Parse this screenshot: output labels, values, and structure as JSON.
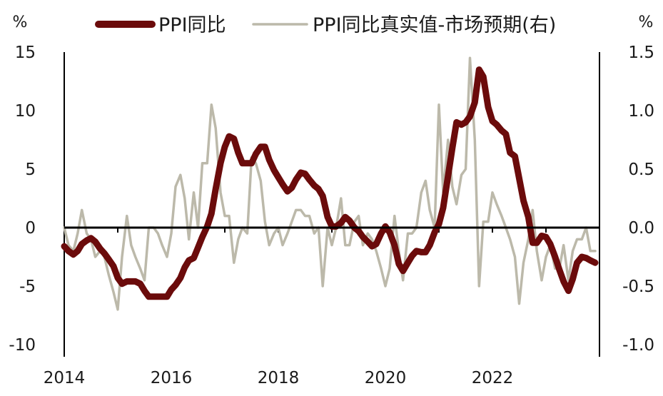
{
  "chart_data": {
    "type": "line",
    "units": {
      "left": "%",
      "right": "%"
    },
    "xaxis": {
      "ticks": [
        "2014",
        "2016",
        "2018",
        "2020",
        "2022"
      ],
      "range": [
        2014.0,
        2024.0
      ]
    },
    "yaxis_left": {
      "ticks": [
        "15",
        "10",
        "5",
        "0",
        "-5",
        "-10"
      ],
      "ylim": [
        -10,
        15
      ]
    },
    "yaxis_right": {
      "ticks": [
        "1.5",
        "1.0",
        "0.5",
        "0.0",
        "-0.5",
        "-1.0"
      ],
      "ylim": [
        -1.0,
        1.5
      ]
    },
    "legend_position": "top",
    "grid": false,
    "zero_line": true,
    "series": [
      {
        "name": "PPI同比",
        "axis": "left",
        "color": "#6b0b0b",
        "x": [
          2014.0,
          2014.08,
          2014.17,
          2014.25,
          2014.33,
          2014.42,
          2014.5,
          2014.58,
          2014.67,
          2014.75,
          2014.83,
          2014.92,
          2015.0,
          2015.08,
          2015.17,
          2015.25,
          2015.33,
          2015.42,
          2015.5,
          2015.58,
          2015.67,
          2015.75,
          2015.83,
          2015.92,
          2016.0,
          2016.08,
          2016.17,
          2016.25,
          2016.33,
          2016.42,
          2016.5,
          2016.58,
          2016.67,
          2016.75,
          2016.83,
          2016.92,
          2017.0,
          2017.08,
          2017.17,
          2017.25,
          2017.33,
          2017.42,
          2017.5,
          2017.58,
          2017.67,
          2017.75,
          2017.83,
          2017.92,
          2018.0,
          2018.08,
          2018.17,
          2018.25,
          2018.33,
          2018.42,
          2018.5,
          2018.58,
          2018.67,
          2018.75,
          2018.83,
          2018.92,
          2019.0,
          2019.08,
          2019.17,
          2019.25,
          2019.33,
          2019.42,
          2019.5,
          2019.58,
          2019.67,
          2019.75,
          2019.83,
          2019.92,
          2020.0,
          2020.08,
          2020.17,
          2020.25,
          2020.33,
          2020.42,
          2020.5,
          2020.58,
          2020.67,
          2020.75,
          2020.83,
          2020.92,
          2021.0,
          2021.08,
          2021.17,
          2021.25,
          2021.33,
          2021.42,
          2021.5,
          2021.58,
          2021.67,
          2021.75,
          2021.83,
          2021.92,
          2022.0,
          2022.08,
          2022.17,
          2022.25,
          2022.33,
          2022.42,
          2022.5,
          2022.58,
          2022.67,
          2022.75,
          2022.83,
          2022.92,
          2023.0,
          2023.08,
          2023.17,
          2023.25,
          2023.33,
          2023.42,
          2023.5,
          2023.58,
          2023.67,
          2023.75,
          2023.83,
          2023.92
        ],
        "y": [
          -1.6,
          -2.0,
          -2.3,
          -2.0,
          -1.4,
          -1.1,
          -0.9,
          -1.2,
          -1.8,
          -2.2,
          -2.7,
          -3.3,
          -4.3,
          -4.8,
          -4.6,
          -4.6,
          -4.6,
          -4.8,
          -5.4,
          -5.9,
          -5.9,
          -5.9,
          -5.9,
          -5.9,
          -5.3,
          -4.9,
          -4.3,
          -3.4,
          -2.8,
          -2.6,
          -1.7,
          -0.8,
          0.1,
          1.2,
          3.3,
          5.5,
          6.9,
          7.8,
          7.6,
          6.4,
          5.5,
          5.5,
          5.5,
          6.3,
          6.9,
          6.9,
          5.8,
          4.9,
          4.3,
          3.7,
          3.1,
          3.4,
          4.1,
          4.7,
          4.6,
          4.1,
          3.6,
          3.3,
          2.7,
          0.9,
          0.1,
          0.1,
          0.4,
          0.9,
          0.6,
          0.0,
          -0.3,
          -0.8,
          -1.2,
          -1.6,
          -1.4,
          -0.5,
          0.1,
          -0.4,
          -1.5,
          -3.1,
          -3.7,
          -3.0,
          -2.4,
          -2.0,
          -2.1,
          -2.1,
          -1.5,
          -0.4,
          0.3,
          1.7,
          4.4,
          6.8,
          9.0,
          8.8,
          9.0,
          9.5,
          10.7,
          13.5,
          12.9,
          10.3,
          9.1,
          8.8,
          8.3,
          8.0,
          6.4,
          6.1,
          4.2,
          2.3,
          0.9,
          -1.3,
          -1.3,
          -0.7,
          -0.8,
          -1.4,
          -2.5,
          -3.6,
          -4.6,
          -5.4,
          -4.4,
          -3.0,
          -2.5,
          -2.6,
          -2.8,
          -3.0
        ]
      },
      {
        "name": "PPI同比真实值-市场预期(右)",
        "axis": "right",
        "color": "#bcb9aa",
        "x": [
          2014.0,
          2014.08,
          2014.17,
          2014.25,
          2014.33,
          2014.42,
          2014.5,
          2014.58,
          2014.67,
          2014.75,
          2014.83,
          2014.92,
          2015.0,
          2015.08,
          2015.17,
          2015.25,
          2015.33,
          2015.42,
          2015.5,
          2015.58,
          2015.67,
          2015.75,
          2015.83,
          2015.92,
          2016.0,
          2016.08,
          2016.17,
          2016.25,
          2016.33,
          2016.42,
          2016.5,
          2016.58,
          2016.67,
          2016.75,
          2016.83,
          2016.92,
          2017.0,
          2017.08,
          2017.17,
          2017.25,
          2017.33,
          2017.42,
          2017.5,
          2017.58,
          2017.67,
          2017.75,
          2017.83,
          2017.92,
          2018.0,
          2018.08,
          2018.17,
          2018.25,
          2018.33,
          2018.42,
          2018.5,
          2018.58,
          2018.67,
          2018.75,
          2018.83,
          2018.92,
          2019.0,
          2019.08,
          2019.17,
          2019.25,
          2019.33,
          2019.42,
          2019.5,
          2019.58,
          2019.67,
          2019.75,
          2019.83,
          2019.92,
          2020.0,
          2020.08,
          2020.17,
          2020.25,
          2020.33,
          2020.42,
          2020.5,
          2020.58,
          2020.67,
          2020.75,
          2020.83,
          2020.92,
          2021.0,
          2021.08,
          2021.17,
          2021.25,
          2021.33,
          2021.42,
          2021.5,
          2021.58,
          2021.67,
          2021.75,
          2021.83,
          2021.92,
          2022.0,
          2022.08,
          2022.17,
          2022.25,
          2022.33,
          2022.42,
          2022.5,
          2022.58,
          2022.67,
          2022.75,
          2022.83,
          2022.92,
          2023.0,
          2023.08,
          2023.17,
          2023.25,
          2023.33,
          2023.42,
          2023.5,
          2023.58,
          2023.67,
          2023.75,
          2023.83,
          2023.92
        ],
        "y": [
          0.0,
          -0.15,
          -0.2,
          -0.05,
          0.15,
          -0.05,
          -0.1,
          -0.25,
          -0.2,
          -0.25,
          -0.4,
          -0.55,
          -0.7,
          -0.25,
          0.1,
          -0.15,
          -0.25,
          -0.35,
          -0.45,
          0.0,
          0.0,
          -0.05,
          -0.15,
          -0.25,
          -0.05,
          0.35,
          0.45,
          0.25,
          -0.1,
          0.3,
          0.0,
          0.55,
          0.55,
          1.05,
          0.85,
          0.3,
          0.1,
          0.1,
          -0.3,
          -0.1,
          0.0,
          -0.05,
          0.6,
          0.55,
          0.4,
          0.05,
          -0.15,
          -0.05,
          0.0,
          -0.15,
          -0.05,
          0.05,
          0.15,
          0.15,
          0.1,
          0.1,
          -0.05,
          0.0,
          -0.5,
          0.0,
          -0.15,
          0.0,
          0.25,
          -0.15,
          -0.15,
          0.05,
          0.1,
          -0.15,
          -0.05,
          -0.1,
          -0.2,
          -0.35,
          -0.5,
          -0.35,
          0.1,
          -0.2,
          -0.45,
          -0.05,
          -0.05,
          0.0,
          0.3,
          0.4,
          0.15,
          0.0,
          1.05,
          0.3,
          0.75,
          0.35,
          0.2,
          0.45,
          0.5,
          1.45,
          0.75,
          -0.5,
          0.05,
          0.05,
          0.3,
          0.2,
          0.1,
          0.0,
          -0.1,
          -0.25,
          -0.65,
          -0.3,
          -0.1,
          0.15,
          -0.2,
          -0.45,
          -0.25,
          -0.15,
          -0.35,
          -0.35,
          -0.15,
          -0.45,
          -0.2,
          -0.1,
          -0.1,
          0.0,
          -0.2,
          -0.2
        ]
      }
    ]
  }
}
